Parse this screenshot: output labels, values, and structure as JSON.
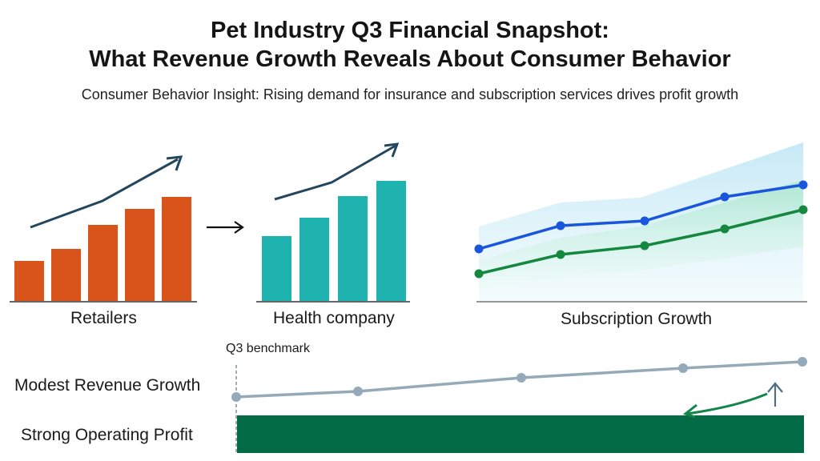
{
  "title_line1": "Pet Industry Q3 Financial Snapshot:",
  "title_line2": "What Revenue Growth Reveals About Consumer Behavior",
  "subtitle": "Consumer Behavior Insight: Rising demand for insurance and subscription services drives profit growth",
  "chart_data": [
    {
      "type": "bar",
      "label": "Retailers",
      "values": [
        50,
        65,
        95,
        115,
        130
      ],
      "color": "#d9541a",
      "trend_arrow": true
    },
    {
      "type": "bar",
      "label": "Health company",
      "values": [
        81,
        104,
        131,
        150
      ],
      "color": "#1fb3b0",
      "trend_arrow": true
    },
    {
      "type": "line",
      "label": "Subscription Growth",
      "series": [
        {
          "values": [
            65,
            94,
            100,
            130,
            145
          ],
          "color": "#1a56db",
          "band": [
            93,
            123,
            129,
            198
          ],
          "band_color": "#bfe6f5"
        },
        {
          "values": [
            34,
            58,
            69,
            90,
            114
          ],
          "color": "#16873f",
          "band_upper": [
            51,
            79,
            93,
            151
          ],
          "band_lower": [
            14,
            31,
            38,
            68
          ],
          "band_color": "#a7e6cc"
        }
      ]
    },
    {
      "type": "line",
      "label": "Modest Revenue Growth",
      "annotation": "Q3 benchmark",
      "values": [
        0,
        7,
        24,
        36,
        44
      ],
      "color": "#94aab8"
    },
    {
      "type": "bar",
      "label": "Strong Operating Profit",
      "color": "#026b45"
    }
  ],
  "connector_arrow": "right-arrow"
}
